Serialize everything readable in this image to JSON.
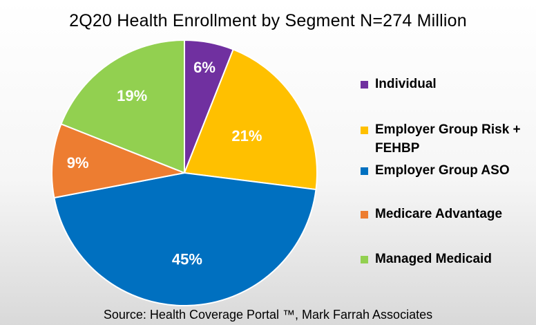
{
  "chart_data": {
    "type": "pie",
    "title": "2Q20 Health Enrollment by Segment N=274 Million",
    "start_angle_deg": 0,
    "direction": "clockwise",
    "slices": [
      {
        "name": "Individual",
        "value": 6,
        "label": "6%",
        "color": "#7030A0"
      },
      {
        "name": "Employer Group Risk + FEHBP",
        "value": 21,
        "label": "21%",
        "color": "#FFC000"
      },
      {
        "name": "Employer Group ASO",
        "value": 45,
        "label": "45%",
        "color": "#0070C0"
      },
      {
        "name": "Medicare Advantage",
        "value": 9,
        "label": "9%",
        "color": "#ED7D31"
      },
      {
        "name": "Managed Medicaid",
        "value": 19,
        "label": "19%",
        "color": "#92D050"
      }
    ],
    "legend": [
      {
        "lines": [
          "Individual"
        ],
        "color": "#7030A0"
      },
      {
        "lines": [
          "Employer Group Risk +",
          "FEHBP"
        ],
        "color": "#FFC000"
      },
      {
        "lines": [
          "Employer Group ASO"
        ],
        "color": "#0070C0"
      },
      {
        "lines": [
          "Medicare Advantage"
        ],
        "color": "#ED7D31"
      },
      {
        "lines": [
          "Managed Medicaid"
        ],
        "color": "#92D050"
      }
    ],
    "legend_position": "right",
    "data_label_color": "#ffffff",
    "source": "Source: Health Coverage Portal ™, Mark Farrah Associates"
  }
}
